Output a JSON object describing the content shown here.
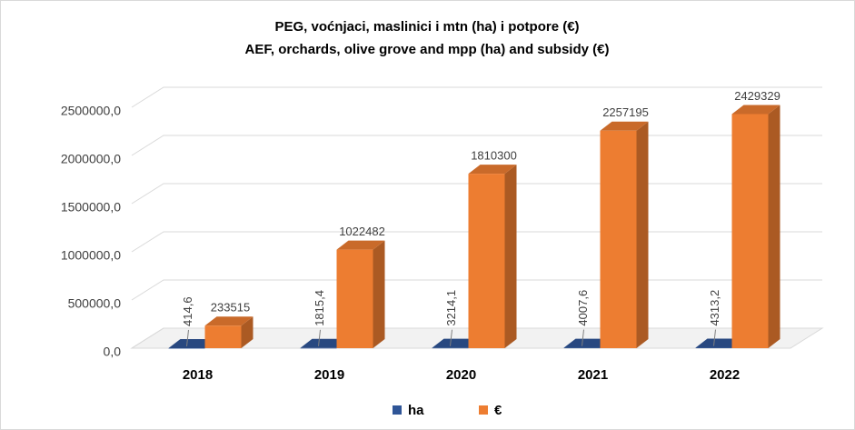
{
  "chart_data": {
    "type": "bar3d",
    "title": "PEG, voćnjaci, maslinici i mtn (ha) i potpore (€)",
    "subtitle": "AEF, orchards, olive grove and mpp (ha) and subsidy (€)",
    "categories": [
      "2018",
      "2019",
      "2020",
      "2021",
      "2022"
    ],
    "series": [
      {
        "name": "ha",
        "color": "#2f5597",
        "values": [
          414.6,
          1815.4,
          3214.1,
          4007.6,
          4313.2
        ],
        "value_labels": [
          "414,6",
          "1815,4",
          "3214,1",
          "4007,6",
          "4313,2"
        ]
      },
      {
        "name": "€",
        "color": "#ed7d31",
        "values": [
          233515,
          1022482,
          1810300,
          2257195,
          2429329
        ]
      }
    ],
    "ylim": [
      0,
      2500000
    ],
    "yticks": [
      {
        "value": 0,
        "label": "0,0"
      },
      {
        "value": 500000,
        "label": "500000,0"
      },
      {
        "value": 1000000,
        "label": "1000000,0"
      },
      {
        "value": 1500000,
        "label": "1500000,0"
      },
      {
        "value": 2000000,
        "label": "2000000,0"
      },
      {
        "value": 2500000,
        "label": "2500000,0"
      }
    ],
    "grid": true,
    "legend": "bottom"
  }
}
